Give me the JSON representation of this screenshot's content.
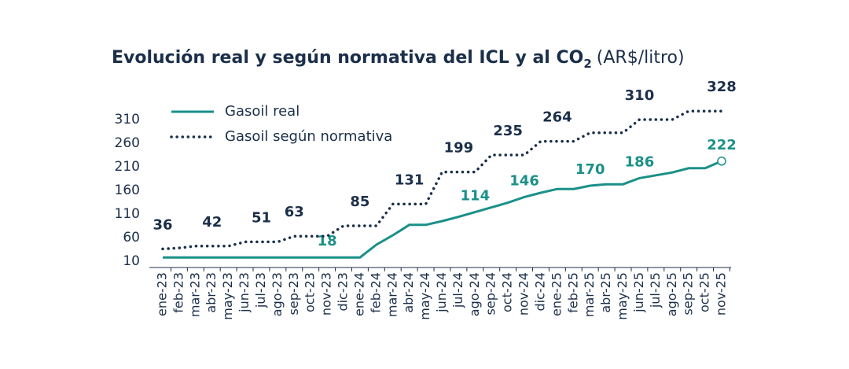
{
  "chart_data": {
    "type": "line",
    "title": "Evolución real y según normativa del ICL y al CO",
    "title_subscript": "2",
    "title_unit": "(AR$/litro)",
    "categories": [
      "ene-23",
      "feb-23",
      "mar-23",
      "abr-23",
      "may-23",
      "jun-23",
      "jul-23",
      "ago-23",
      "sep-23",
      "oct-23",
      "nov-23",
      "dic-23",
      "ene-24",
      "feb-24",
      "mar-24",
      "abr-24",
      "may-24",
      "jun-24",
      "jul-24",
      "ago-24",
      "sep-24",
      "oct-24",
      "nov-24",
      "dic-24",
      "ene-25",
      "feb-25",
      "mar-25",
      "abr-25",
      "may-25",
      "jun-25",
      "jul-25",
      "ago-25",
      "sep-25",
      "oct-25",
      "nov-25"
    ],
    "series": [
      {
        "name": "Gasoil real",
        "color": "#1a9088",
        "style": "solid",
        "values": [
          18,
          18,
          18,
          18,
          18,
          18,
          18,
          18,
          18,
          18,
          18,
          18,
          18,
          45,
          65,
          87,
          87,
          95,
          104,
          114,
          124,
          134,
          146,
          155,
          163,
          163,
          170,
          173,
          173,
          186,
          192,
          198,
          207,
          207,
          222
        ],
        "value_labels": [
          null,
          null,
          null,
          null,
          null,
          null,
          null,
          null,
          null,
          null,
          "18",
          null,
          null,
          null,
          null,
          null,
          null,
          null,
          null,
          "114",
          null,
          null,
          "146",
          null,
          null,
          null,
          "170",
          null,
          null,
          "186",
          null,
          null,
          null,
          null,
          "222"
        ]
      },
      {
        "name": "Gasoil según normativa",
        "color": "#1b2f4a",
        "style": "dotted",
        "values": [
          36,
          38,
          42,
          42,
          42,
          51,
          51,
          51,
          63,
          63,
          63,
          85,
          85,
          85,
          131,
          131,
          131,
          199,
          199,
          199,
          235,
          235,
          235,
          264,
          264,
          264,
          282,
          282,
          282,
          310,
          310,
          310,
          328,
          328,
          328
        ],
        "value_labels": [
          "36",
          null,
          null,
          "42",
          null,
          null,
          "51",
          null,
          "63",
          null,
          null,
          null,
          "85",
          null,
          null,
          "131",
          null,
          null,
          "199",
          null,
          null,
          "235",
          null,
          null,
          "264",
          null,
          null,
          null,
          null,
          "310",
          null,
          null,
          null,
          null,
          "328"
        ]
      }
    ],
    "ylim": [
      10,
      340
    ],
    "yticks": [
      10,
      60,
      110,
      160,
      210,
      260,
      310
    ],
    "grid": false,
    "legend": "top-left"
  }
}
